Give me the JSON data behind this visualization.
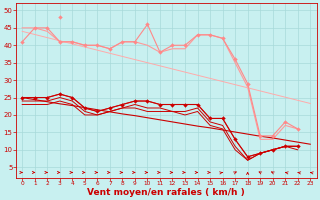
{
  "background_color": "#c8f0f0",
  "grid_color": "#a8dada",
  "xlabel": "Vent moyen/en rafales ( km/h )",
  "xlabel_color": "#cc0000",
  "xlabel_fontsize": 6.5,
  "tick_color": "#cc0000",
  "ylim": [
    2,
    52
  ],
  "xlim": [
    -0.5,
    23.5
  ],
  "yticks": [
    5,
    10,
    15,
    20,
    25,
    30,
    35,
    40,
    45,
    50
  ],
  "xticks": [
    0,
    1,
    2,
    3,
    4,
    5,
    6,
    7,
    8,
    9,
    10,
    11,
    12,
    13,
    14,
    15,
    16,
    17,
    18,
    19,
    20,
    21,
    22,
    23
  ],
  "series": [
    {
      "color": "#ff8888",
      "linewidth": 0.8,
      "marker": "D",
      "markersize": 2.0,
      "values": [
        41,
        45,
        45,
        41,
        41,
        40,
        40,
        39,
        41,
        41,
        46,
        38,
        40,
        40,
        43,
        43,
        42,
        36,
        29,
        14,
        14,
        18,
        16,
        null
      ]
    },
    {
      "color": "#ff8888",
      "linewidth": 0.8,
      "marker": "D",
      "markersize": 2.0,
      "values": [
        null,
        null,
        null,
        48,
        null,
        null,
        null,
        null,
        null,
        null,
        null,
        null,
        null,
        null,
        null,
        null,
        null,
        null,
        null,
        null,
        null,
        null,
        null,
        null
      ]
    },
    {
      "color": "#ff9999",
      "linewidth": 0.8,
      "marker": null,
      "markersize": 0,
      "values": [
        45,
        45,
        44,
        41,
        41,
        40,
        40,
        39,
        41,
        41,
        40,
        38,
        39,
        39,
        43,
        43,
        42,
        35,
        28,
        13,
        13,
        17,
        16,
        null
      ]
    },
    {
      "color": "#ffaaaa",
      "linewidth": 0.7,
      "marker": null,
      "markersize": 0,
      "values": [
        44,
        43.1,
        42.2,
        41.3,
        40.4,
        39.5,
        38.6,
        37.7,
        36.8,
        35.9,
        35.0,
        34.1,
        33.2,
        32.3,
        31.4,
        30.5,
        29.6,
        28.7,
        27.8,
        26.9,
        26.0,
        25.1,
        24.2,
        23.3
      ]
    },
    {
      "color": "#cc0000",
      "linewidth": 0.8,
      "marker": "D",
      "markersize": 2.0,
      "values": [
        25,
        25,
        25,
        26,
        25,
        22,
        21,
        22,
        23,
        24,
        24,
        23,
        23,
        23,
        23,
        19,
        19,
        13,
        8,
        9,
        10,
        11,
        11,
        null
      ]
    },
    {
      "color": "#dd2222",
      "linewidth": 0.7,
      "marker": null,
      "markersize": 0,
      "values": [
        25,
        25,
        25,
        26,
        25,
        22,
        21,
        22,
        23,
        24,
        24,
        23,
        23,
        23,
        23,
        19,
        19,
        13,
        8,
        9,
        10,
        11,
        11,
        null
      ]
    },
    {
      "color": "#cc0000",
      "linewidth": 0.7,
      "marker": null,
      "markersize": 0,
      "values": [
        24,
        24,
        24,
        25,
        24,
        21,
        20,
        21,
        22,
        23,
        22,
        22,
        21,
        21,
        22,
        18,
        17,
        11,
        7,
        9,
        10,
        11,
        11,
        null
      ]
    },
    {
      "color": "#cc0000",
      "linewidth": 0.7,
      "marker": null,
      "markersize": 0,
      "values": [
        23,
        23,
        23,
        24,
        23,
        20,
        20,
        21,
        22,
        22,
        21,
        21,
        21,
        20,
        21,
        17,
        16,
        10,
        7,
        9,
        10,
        11,
        10,
        null
      ]
    },
    {
      "color": "#cc0000",
      "linewidth": 0.8,
      "marker": null,
      "markersize": 0,
      "values": [
        25,
        24.4,
        23.8,
        23.2,
        22.7,
        22.1,
        21.5,
        20.9,
        20.3,
        19.8,
        19.2,
        18.6,
        18.0,
        17.4,
        16.8,
        16.3,
        15.7,
        15.1,
        14.5,
        13.9,
        13.4,
        12.8,
        12.2,
        11.6
      ]
    }
  ],
  "arrow_angles": [
    0,
    0,
    0,
    0,
    0,
    0,
    0,
    0,
    0,
    0,
    0,
    0,
    0,
    0,
    0,
    0,
    30,
    60,
    90,
    120,
    120,
    150,
    150,
    150
  ]
}
